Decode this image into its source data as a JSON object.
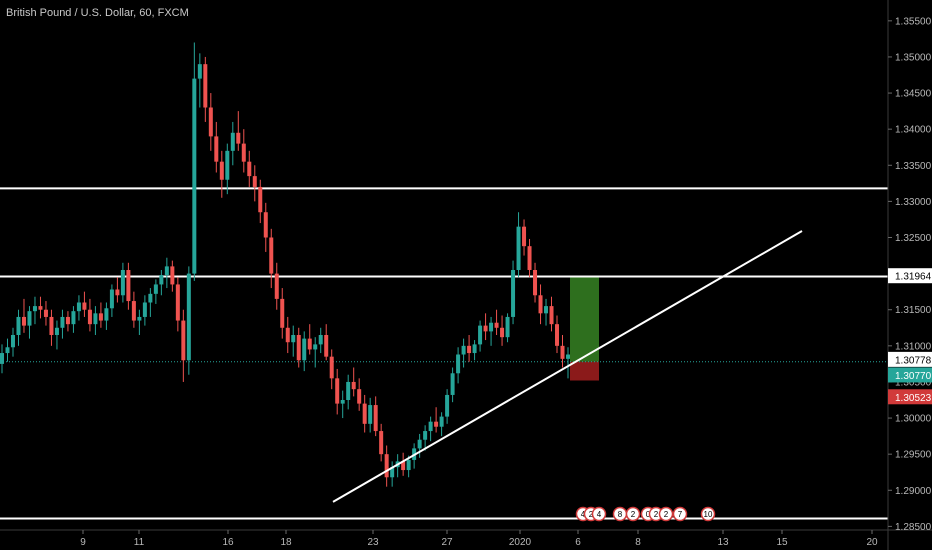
{
  "chart_data": {
    "type": "candlestick",
    "title": "British Pound / U.S. Dollar, 60, FXCM",
    "x_ticks": [
      "9",
      "11",
      "16",
      "18",
      "23",
      "27",
      "2020",
      "6",
      "8",
      "13",
      "15",
      "20"
    ],
    "y_ticks": [
      "1.35500",
      "1.35000",
      "1.34500",
      "1.34000",
      "1.33500",
      "1.33000",
      "1.32500",
      "1.32000",
      "1.31500",
      "1.31000",
      "1.30500",
      "1.30000",
      "1.29500",
      "1.29000",
      "1.28500"
    ],
    "ylim": [
      1.2845,
      1.3565
    ],
    "series": [
      {
        "values": [
          [
            1.3075,
            1.3102,
            1.3062,
            1.309
          ],
          [
            1.309,
            1.311,
            1.3078,
            1.3098
          ],
          [
            1.3098,
            1.3125,
            1.3085,
            1.3115
          ],
          [
            1.3115,
            1.315,
            1.31,
            1.314
          ],
          [
            1.314,
            1.3165,
            1.3118,
            1.3128
          ],
          [
            1.3128,
            1.3155,
            1.311,
            1.3148
          ],
          [
            1.3148,
            1.3168,
            1.313,
            1.3155
          ],
          [
            1.3155,
            1.3168,
            1.3138,
            1.315
          ],
          [
            1.315,
            1.3162,
            1.3128,
            1.314
          ],
          [
            1.314,
            1.315,
            1.31,
            1.3115
          ],
          [
            1.3115,
            1.3135,
            1.3095,
            1.3125
          ],
          [
            1.3125,
            1.315,
            1.311,
            1.314
          ],
          [
            1.314,
            1.3148,
            1.312,
            1.313
          ],
          [
            1.313,
            1.3155,
            1.3118,
            1.3148
          ],
          [
            1.3148,
            1.317,
            1.3135,
            1.316
          ],
          [
            1.316,
            1.3175,
            1.314,
            1.315
          ],
          [
            1.315,
            1.3165,
            1.312,
            1.313
          ],
          [
            1.313,
            1.3155,
            1.3115,
            1.3145
          ],
          [
            1.3145,
            1.316,
            1.3125,
            1.3135
          ],
          [
            1.3135,
            1.316,
            1.3122,
            1.3152
          ],
          [
            1.3152,
            1.3185,
            1.314,
            1.3178
          ],
          [
            1.3178,
            1.3195,
            1.316,
            1.317
          ],
          [
            1.317,
            1.3215,
            1.316,
            1.3205
          ],
          [
            1.3205,
            1.3215,
            1.315,
            1.3162
          ],
          [
            1.3162,
            1.3175,
            1.3125,
            1.3135
          ],
          [
            1.3135,
            1.315,
            1.3115,
            1.314
          ],
          [
            1.314,
            1.317,
            1.3128,
            1.316
          ],
          [
            1.316,
            1.318,
            1.314,
            1.3172
          ],
          [
            1.3172,
            1.3192,
            1.3158,
            1.3185
          ],
          [
            1.3185,
            1.3205,
            1.317,
            1.3198
          ],
          [
            1.3198,
            1.3222,
            1.318,
            1.321
          ],
          [
            1.321,
            1.3218,
            1.3175,
            1.3185
          ],
          [
            1.3185,
            1.3195,
            1.312,
            1.3135
          ],
          [
            1.3135,
            1.315,
            1.305,
            1.308
          ],
          [
            1.308,
            1.321,
            1.306,
            1.32
          ],
          [
            1.32,
            1.352,
            1.319,
            1.347
          ],
          [
            1.347,
            1.3505,
            1.343,
            1.349
          ],
          [
            1.349,
            1.35,
            1.341,
            1.343
          ],
          [
            1.343,
            1.345,
            1.337,
            1.339
          ],
          [
            1.339,
            1.341,
            1.334,
            1.3355
          ],
          [
            1.3355,
            1.337,
            1.3305,
            1.333
          ],
          [
            1.333,
            1.338,
            1.331,
            1.337
          ],
          [
            1.337,
            1.341,
            1.335,
            1.3395
          ],
          [
            1.3395,
            1.3425,
            1.337,
            1.338
          ],
          [
            1.338,
            1.34,
            1.334,
            1.3355
          ],
          [
            1.3355,
            1.337,
            1.332,
            1.3335
          ],
          [
            1.3335,
            1.335,
            1.33,
            1.332
          ],
          [
            1.332,
            1.333,
            1.327,
            1.3285
          ],
          [
            1.3285,
            1.3298,
            1.323,
            1.325
          ],
          [
            1.325,
            1.3262,
            1.318,
            1.32
          ],
          [
            1.32,
            1.3215,
            1.315,
            1.3165
          ],
          [
            1.3165,
            1.318,
            1.311,
            1.3125
          ],
          [
            1.3125,
            1.314,
            1.309,
            1.3105
          ],
          [
            1.3105,
            1.3128,
            1.3085,
            1.3115
          ],
          [
            1.3115,
            1.3125,
            1.307,
            1.308
          ],
          [
            1.308,
            1.312,
            1.3065,
            1.311
          ],
          [
            1.311,
            1.313,
            1.3088,
            1.3095
          ],
          [
            1.3095,
            1.3112,
            1.307,
            1.3102
          ],
          [
            1.3102,
            1.3125,
            1.309,
            1.3115
          ],
          [
            1.3115,
            1.313,
            1.308,
            1.3085
          ],
          [
            1.3085,
            1.3095,
            1.304,
            1.3055
          ],
          [
            1.3055,
            1.3068,
            1.3005,
            1.302
          ],
          [
            1.302,
            1.3038,
            1.3,
            1.3025
          ],
          [
            1.3025,
            1.306,
            1.3012,
            1.305
          ],
          [
            1.305,
            1.307,
            1.303,
            1.304
          ],
          [
            1.304,
            1.3055,
            1.301,
            1.302
          ],
          [
            1.302,
            1.3032,
            1.298,
            1.2992
          ],
          [
            1.2992,
            1.3028,
            1.298,
            1.3018
          ],
          [
            1.3018,
            1.303,
            1.2975,
            1.2982
          ],
          [
            1.2982,
            1.2992,
            1.294,
            1.295
          ],
          [
            1.295,
            1.2962,
            1.2905,
            1.2918
          ],
          [
            1.2918,
            1.294,
            1.2905,
            1.2932
          ],
          [
            1.2932,
            1.295,
            1.2918,
            1.294
          ],
          [
            1.294,
            1.2952,
            1.292,
            1.2928
          ],
          [
            1.2928,
            1.2948,
            1.2918,
            1.2942
          ],
          [
            1.2942,
            1.2965,
            1.293,
            1.2958
          ],
          [
            1.2958,
            1.2978,
            1.2945,
            1.297
          ],
          [
            1.297,
            1.299,
            1.2955,
            1.2982
          ],
          [
            1.2982,
            1.3002,
            1.2968,
            1.2995
          ],
          [
            1.2995,
            1.3015,
            1.298,
            1.2988
          ],
          [
            1.2988,
            1.3008,
            1.2975,
            1.3002
          ],
          [
            1.3002,
            1.304,
            1.2992,
            1.3032
          ],
          [
            1.3032,
            1.307,
            1.3022,
            1.3062
          ],
          [
            1.3062,
            1.3098,
            1.3048,
            1.3088
          ],
          [
            1.3088,
            1.311,
            1.307,
            1.31
          ],
          [
            1.31,
            1.3115,
            1.3078,
            1.309
          ],
          [
            1.309,
            1.3108,
            1.308,
            1.3102
          ],
          [
            1.3102,
            1.3135,
            1.3092,
            1.3128
          ],
          [
            1.3128,
            1.3145,
            1.3108,
            1.312
          ],
          [
            1.312,
            1.314,
            1.31,
            1.3132
          ],
          [
            1.3132,
            1.315,
            1.3115,
            1.3125
          ],
          [
            1.3125,
            1.3142,
            1.31,
            1.3112
          ],
          [
            1.3112,
            1.3145,
            1.3105,
            1.314
          ],
          [
            1.314,
            1.3218,
            1.313,
            1.3205
          ],
          [
            1.3205,
            1.3285,
            1.3195,
            1.3265
          ],
          [
            1.3265,
            1.3275,
            1.3225,
            1.3238
          ],
          [
            1.3238,
            1.3248,
            1.3195,
            1.3205
          ],
          [
            1.3205,
            1.3215,
            1.316,
            1.317
          ],
          [
            1.317,
            1.3185,
            1.313,
            1.3145
          ],
          [
            1.3145,
            1.3165,
            1.3128,
            1.3155
          ],
          [
            1.3155,
            1.3168,
            1.312,
            1.313
          ],
          [
            1.313,
            1.3142,
            1.309,
            1.31
          ],
          [
            1.31,
            1.3115,
            1.307,
            1.3082
          ],
          [
            1.3082,
            1.3098,
            1.3055,
            1.3088
          ]
        ]
      }
    ],
    "price_labels": [
      "1.31964",
      "1.30778",
      "1.30770",
      "1.30523"
    ],
    "horizontal_levels": [
      1.3318,
      1.3196,
      1.2861
    ],
    "trendline": {
      "from": [
        1.2884,
        "23"
      ],
      "to": [
        1.3259,
        "15"
      ]
    },
    "position_box": {
      "entry": 1.3078,
      "target": 1.3196,
      "stop": 1.3052
    },
    "colors": {
      "background": "#000000",
      "up": "#26a69a",
      "down": "#ef5350",
      "level_line": "#ffffff",
      "dotted_price_line": "#26a69a",
      "target_zone": "#2e6f1e",
      "stop_zone": "#8b1a1a",
      "badge_white": "#ffffff",
      "badge_green": "#26a69a",
      "badge_red": "#d13a3a"
    },
    "events": [
      "4",
      "2",
      "4",
      "8",
      "2",
      "0",
      "2",
      "2",
      "7",
      "10"
    ],
    "grid": false
  }
}
